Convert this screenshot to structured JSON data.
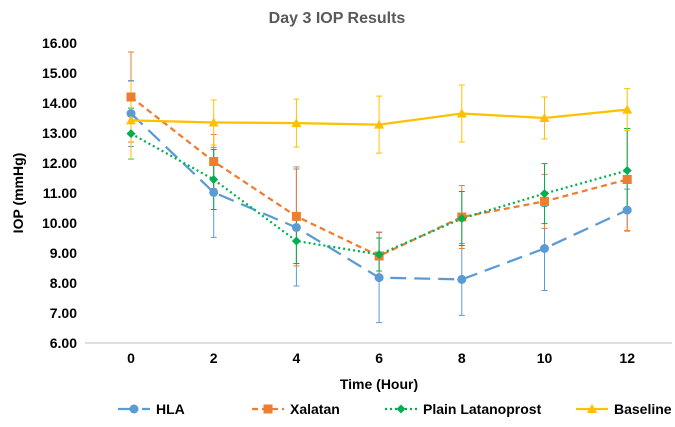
{
  "chart_data": {
    "type": "line",
    "title": "Day 3 IOP Results",
    "xlabel": "Time (Hour)",
    "ylabel": "IOP (mmHg)",
    "x": [
      0,
      2,
      4,
      6,
      8,
      10,
      12
    ],
    "x_tick_labels": [
      "0",
      "2",
      "4",
      "6",
      "8",
      "10",
      "12"
    ],
    "ylim": [
      6.0,
      16.0
    ],
    "y_tick_labels": [
      "6.00",
      "7.00",
      "8.00",
      "9.00",
      "10.00",
      "11.00",
      "12.00",
      "13.00",
      "14.00",
      "15.00",
      "16.00"
    ],
    "grid": false,
    "legend_position": "bottom",
    "series": [
      {
        "name": "HLA",
        "color": "#5B9BD5",
        "marker": "circle",
        "line_style": "long-dash",
        "values": [
          13.65,
          11.02,
          9.85,
          8.18,
          8.12,
          9.15,
          10.43
        ],
        "error": [
          1.1,
          1.5,
          1.95,
          1.5,
          1.2,
          1.4,
          0.7
        ]
      },
      {
        "name": "Xalatan",
        "color": "#ED7D31",
        "marker": "square",
        "line_style": "dash",
        "values": [
          14.2,
          12.05,
          10.22,
          8.9,
          10.2,
          10.72,
          11.45
        ],
        "error": [
          1.5,
          0.9,
          1.65,
          0.8,
          1.05,
          0.9,
          1.7
        ]
      },
      {
        "name": "Plain Latanoprost",
        "color": "#00B050",
        "marker": "diamond",
        "line_style": "dot",
        "values": [
          12.98,
          11.45,
          9.4,
          8.95,
          10.15,
          10.98,
          11.75
        ],
        "error": [
          0.85,
          1.0,
          0.75,
          0.55,
          0.9,
          1.0,
          1.4
        ]
      },
      {
        "name": "Baseline",
        "color": "#FFC000",
        "marker": "triangle",
        "line_style": "solid",
        "values": [
          13.42,
          13.35,
          13.33,
          13.28,
          13.65,
          13.5,
          13.78
        ],
        "error": [
          1.3,
          0.75,
          0.8,
          0.95,
          0.95,
          0.7,
          0.7
        ]
      }
    ]
  }
}
